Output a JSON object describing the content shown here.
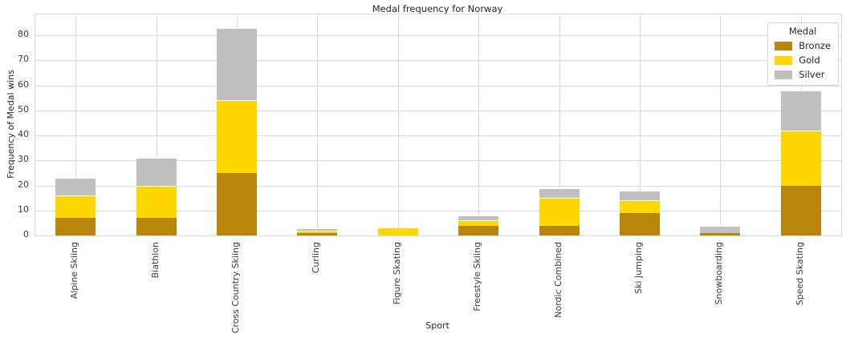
{
  "chart_data": {
    "type": "bar",
    "stacked": true,
    "title": "Medal frequency for Norway",
    "xlabel": "Sport",
    "ylabel": "Frequency of Medal wins",
    "categories": [
      "Alpine Skiing",
      "Biathlon",
      "Cross Country Skiing",
      "Curling",
      "Figure Skating",
      "Freestyle Skiing",
      "Nordic Combined",
      "Ski Jumping",
      "Snowboarding",
      "Speed Skating"
    ],
    "series": [
      {
        "name": "Bronze",
        "color": "#b8860b",
        "values": [
          7,
          7,
          25,
          1,
          0,
          4,
          4,
          9,
          1,
          20
        ]
      },
      {
        "name": "Gold",
        "color": "#ffd700",
        "values": [
          9,
          13,
          29,
          1,
          3,
          2,
          11,
          5,
          0,
          22
        ]
      },
      {
        "name": "Silver",
        "color": "#c0c0c0",
        "values": [
          7,
          11,
          29,
          1,
          0,
          2,
          4,
          4,
          3,
          16
        ]
      }
    ],
    "totals": [
      23,
      31,
      83,
      3,
      3,
      8,
      19,
      18,
      4,
      58
    ],
    "yticks": [
      0,
      10,
      20,
      30,
      40,
      50,
      60,
      70,
      80
    ],
    "ylim": [
      0,
      88.4
    ],
    "grid": true,
    "legend": {
      "title": "Medal",
      "entries": [
        "Bronze",
        "Gold",
        "Silver"
      ],
      "position": "upper right"
    },
    "colors": {
      "grid": "#d9d9d9",
      "tick_text": "#3b3b3b",
      "text": "#262626",
      "background": "#ffffff"
    }
  }
}
